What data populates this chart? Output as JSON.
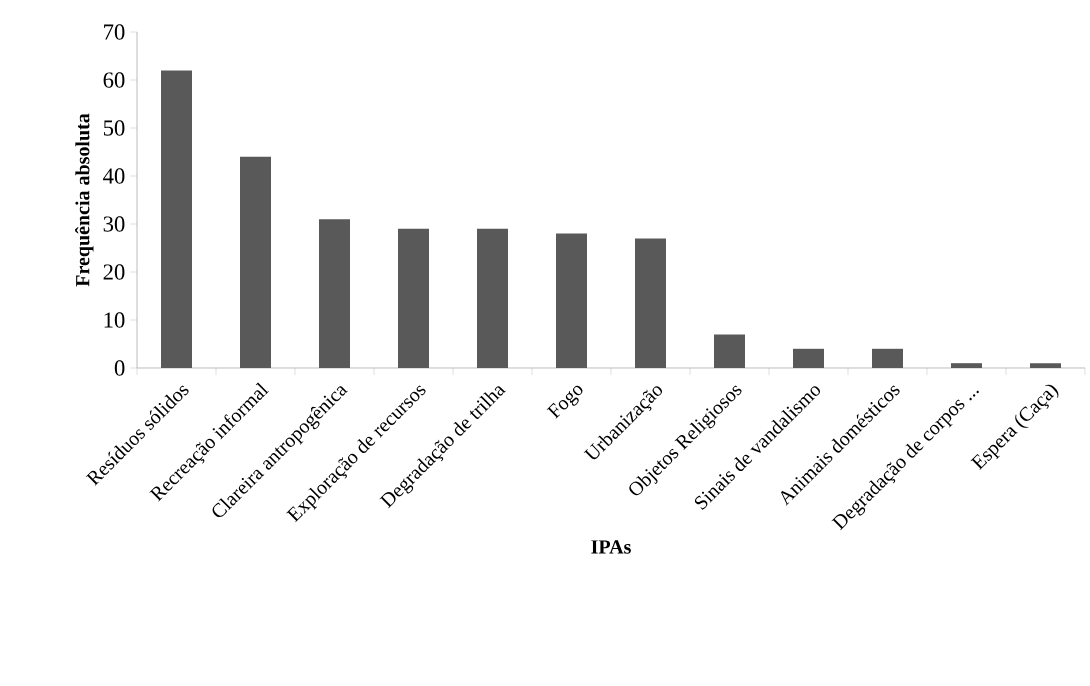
{
  "chart_data": {
    "type": "bar",
    "xlabel": "IPAs",
    "ylabel": "Frequência absoluta",
    "categories": [
      "Resíduos sólidos",
      "Recreação informal",
      "Clareira antropogênica",
      "Exploração de recursos",
      "Degradação de trilha",
      "Fogo",
      "Urbanização",
      "Objetos Religiosos",
      "Sinais de vandalismo",
      "Animais domésticos",
      "Degradação de corpos ...",
      "Espera (Caça)"
    ],
    "values": [
      62,
      44,
      31,
      29,
      29,
      28,
      27,
      7,
      4,
      4,
      1,
      1
    ],
    "color": "#595959",
    "ylim": [
      0,
      70
    ],
    "yticks": [
      0,
      10,
      20,
      30,
      40,
      50,
      60,
      70
    ]
  }
}
